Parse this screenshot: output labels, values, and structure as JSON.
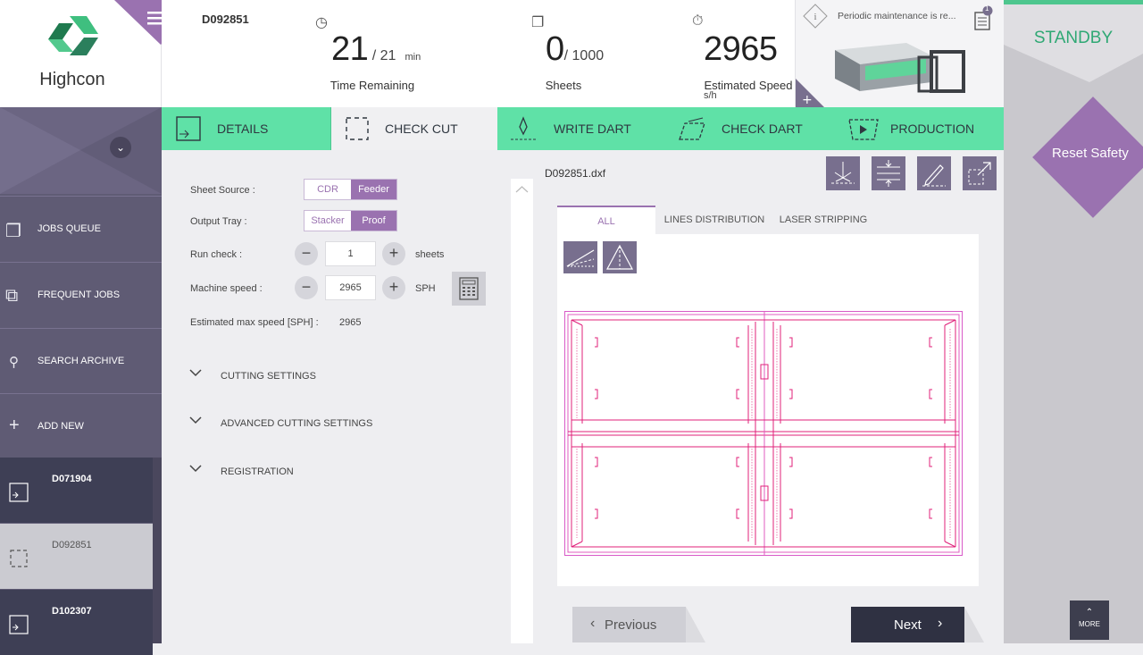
{
  "app": {
    "logo_text": "Highcon",
    "job_id": "D092851"
  },
  "stats": {
    "time": {
      "value": "21",
      "total": "/ 21",
      "unit": "min",
      "label": "Time Remaining"
    },
    "sheets": {
      "value": "0",
      "total": "/ 1000",
      "label": "Sheets"
    },
    "speed": {
      "value": "2965",
      "unit": "s/h",
      "label": "Estimated Speed"
    }
  },
  "notification": {
    "text": "Periodic maintenance is re...",
    "badge": "1"
  },
  "status": {
    "standby": "STANDBY",
    "reset_safety": "Reset Safety",
    "more": "MORE"
  },
  "sidebar": {
    "items": [
      {
        "label": "JOBS QUEUE"
      },
      {
        "label": "FREQUENT JOBS"
      },
      {
        "label": "SEARCH ARCHIVE"
      },
      {
        "label": "ADD NEW"
      }
    ],
    "jobs": [
      {
        "label": "D071904"
      },
      {
        "label": "D092851"
      },
      {
        "label": "D102307"
      }
    ]
  },
  "tabs": [
    "DETAILS",
    "CHECK CUT",
    "WRITE DART",
    "CHECK DART",
    "PRODUCTION"
  ],
  "settings": {
    "sheet_source": {
      "label": "Sheet Source :",
      "options": [
        "CDR",
        "Feeder"
      ],
      "selected": "Feeder"
    },
    "output_tray": {
      "label": "Output Tray :",
      "options": [
        "Stacker",
        "Proof"
      ],
      "selected": "Proof"
    },
    "run_check": {
      "label": "Run check :",
      "value": "1",
      "unit": "sheets"
    },
    "machine_speed": {
      "label": "Machine speed :",
      "value": "2965",
      "unit": "SPH"
    },
    "est_max_speed": {
      "label": "Estimated max speed [SPH] :",
      "value": "2965"
    },
    "sections": [
      "CUTTING SETTINGS",
      "ADVANCED CUTTING SETTINGS",
      "REGISTRATION"
    ]
  },
  "preview": {
    "filename": "D092851.dxf",
    "tabs": [
      "ALL",
      "LINES DISTRIBUTION",
      "LASER STRIPPING"
    ],
    "active_tab": "ALL"
  },
  "nav": {
    "previous": "Previous",
    "next": "Next"
  },
  "colors": {
    "accent_green": "#5fe1a7",
    "accent_purple": "#9a72b0",
    "sidebar": "#5f5b74",
    "die_line": "#e0207a"
  }
}
